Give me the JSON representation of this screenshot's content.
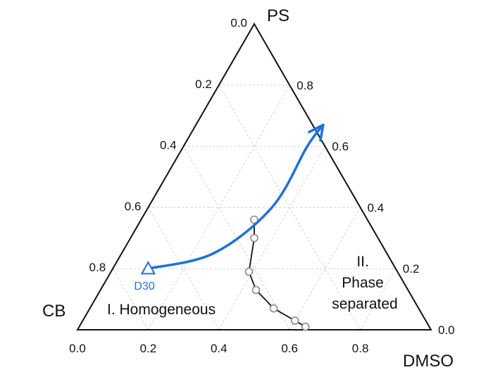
{
  "chart_data": {
    "type": "scatter",
    "subtype": "ternary",
    "vertices": {
      "top": "PS",
      "left": "CB",
      "right": "DMSO"
    },
    "bottom_ticks": [
      "0.0",
      "0.2",
      "0.4",
      "0.6",
      "0.8"
    ],
    "left_ticks": [
      "0.0",
      "0.2",
      "0.4",
      "0.6",
      "0.8"
    ],
    "right_ticks": [
      "0.8",
      "0.6",
      "0.4",
      "0.2",
      "0.0"
    ],
    "grid": true,
    "series": [
      {
        "marker": "open-circle",
        "color": "#888888",
        "points": [
          {
            "PS": 0.36,
            "DMSO": 0.32
          },
          {
            "PS": 0.3,
            "DMSO": 0.35
          },
          {
            "PS": 0.19,
            "DMSO": 0.39
          },
          {
            "PS": 0.13,
            "DMSO": 0.44
          },
          {
            "PS": 0.07,
            "DMSO": 0.52
          },
          {
            "PS": 0.03,
            "DMSO": 0.6
          },
          {
            "PS": 0.01,
            "DMSO": 0.64
          }
        ]
      }
    ],
    "path_arrow": {
      "color": "#1E6FE0",
      "points": [
        {
          "PS": 0.2,
          "DMSO": 0.1
        },
        {
          "PS": 0.25,
          "DMSO": 0.26
        },
        {
          "PS": 0.4,
          "DMSO": 0.35
        },
        {
          "PS": 0.6,
          "DMSO": 0.35
        },
        {
          "PS": 0.67,
          "DMSO": 0.36
        }
      ]
    },
    "marked_point": {
      "label": "D30",
      "marker": "open-triangle",
      "color": "#1E6FE0",
      "PS": 0.2,
      "DMSO": 0.1
    },
    "regions": [
      {
        "label": "I. Homogeneous"
      },
      {
        "label_lines": [
          "II.",
          "Phase",
          "separated"
        ]
      }
    ]
  }
}
